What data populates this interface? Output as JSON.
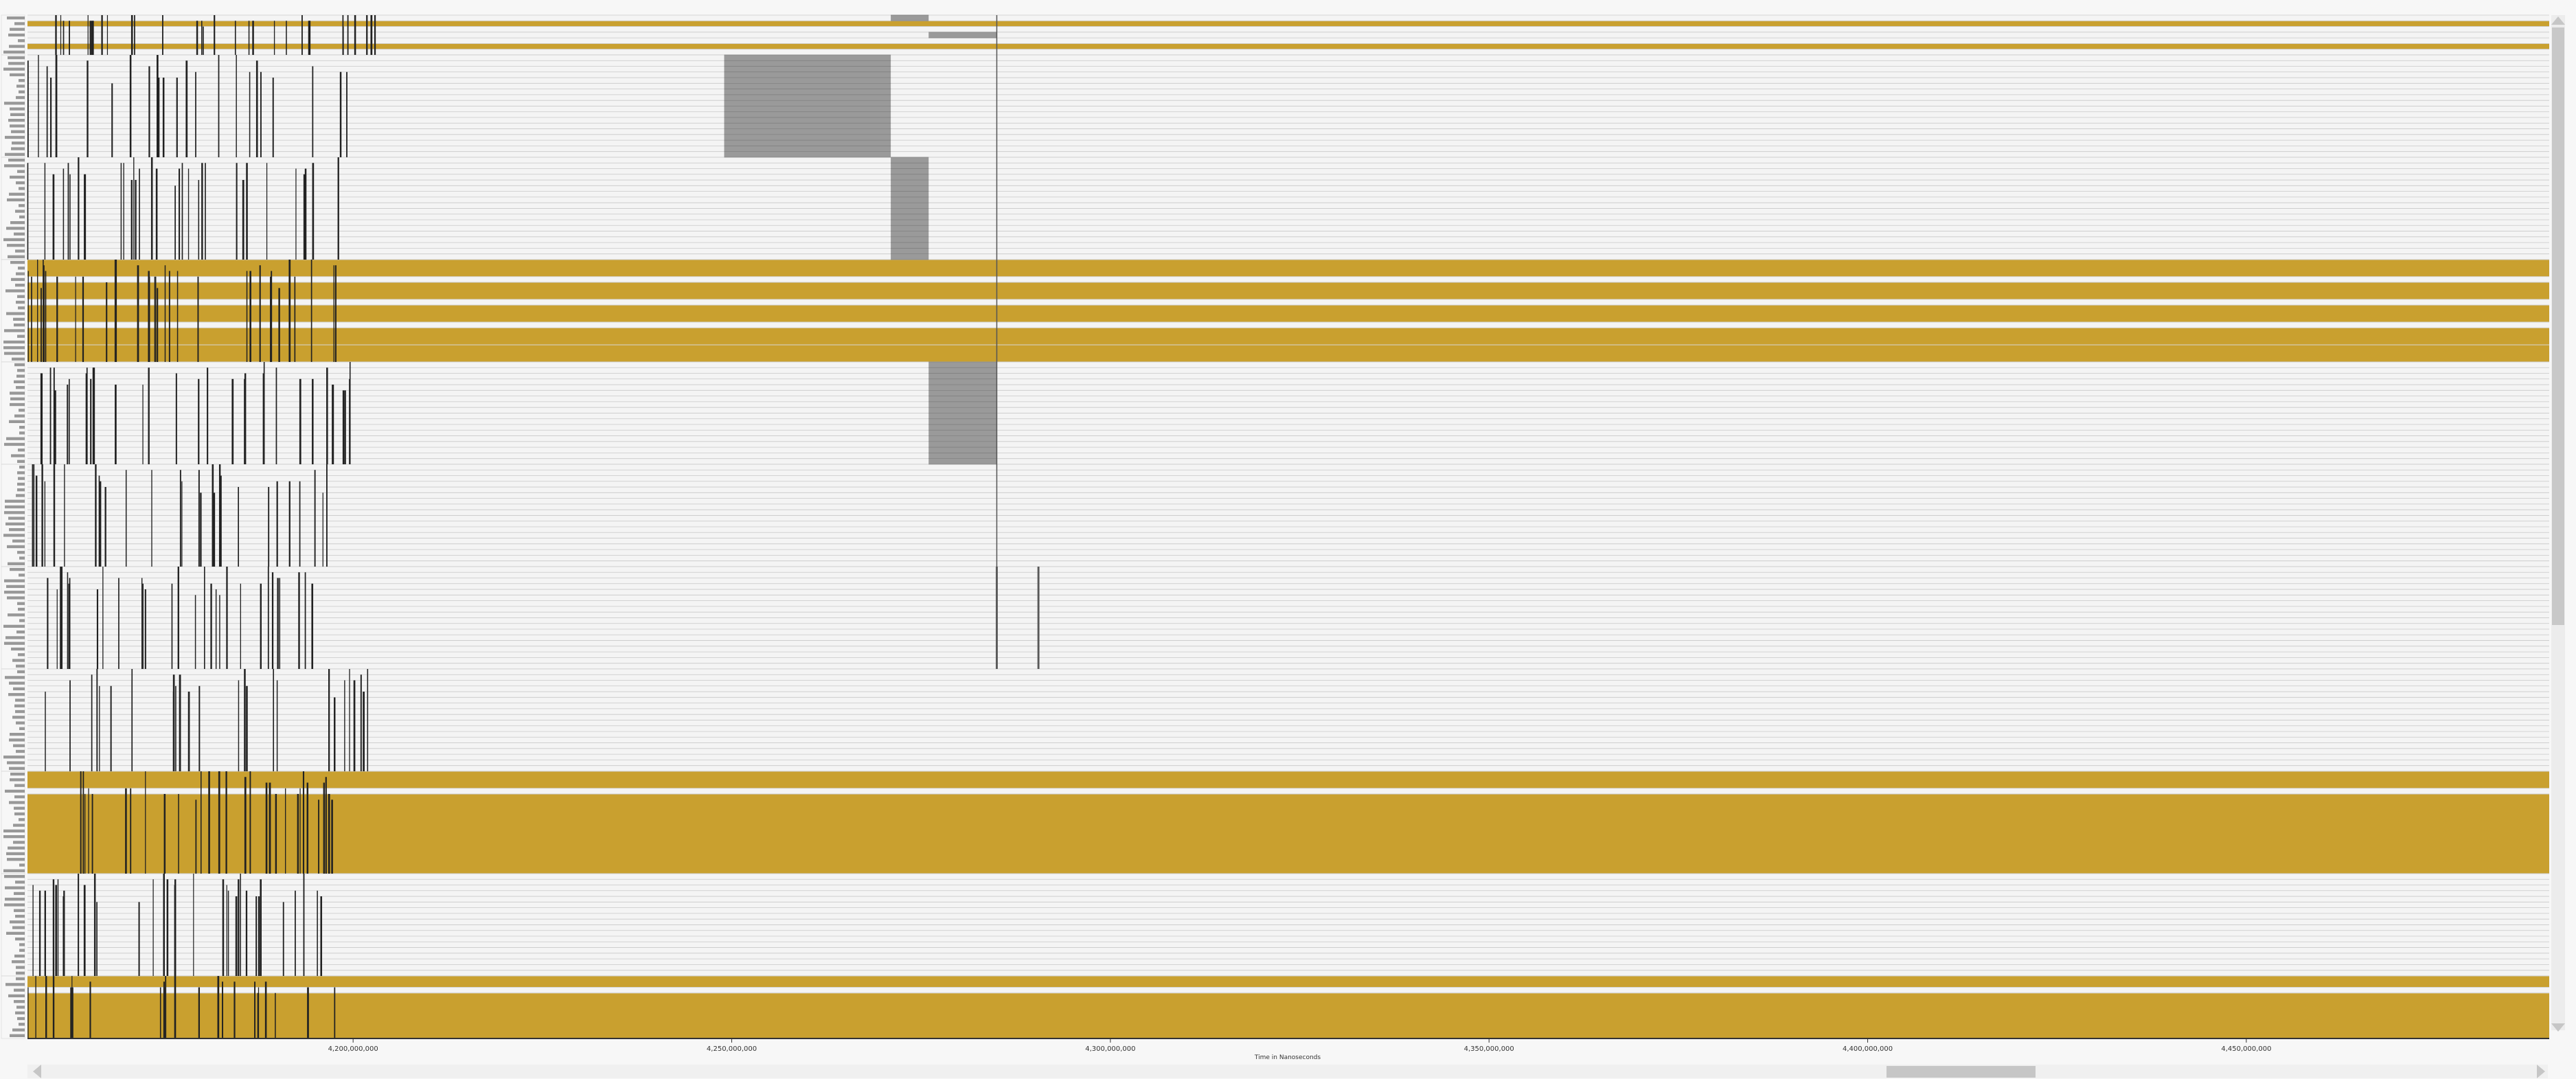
{
  "chart_data": {
    "type": "timeline",
    "xlabel": "Time in Nanoseconds",
    "xlim": [
      4157000000,
      4490000000
    ],
    "x_ticks": [
      {
        "value": 4200000000,
        "label": "4,200,000,000"
      },
      {
        "value": 4250000000,
        "label": "4,250,000,000"
      },
      {
        "value": 4300000000,
        "label": "4,300,000,000"
      },
      {
        "value": 4350000000,
        "label": "4,350,000,000"
      },
      {
        "value": 4400000000,
        "label": "4,400,000,000"
      },
      {
        "value": 4450000000,
        "label": "4,450,000,000"
      }
    ],
    "colors": {
      "busy": "#c9a02f",
      "active": "#9a9a9a",
      "event": "#222222",
      "row_line": "#c8c8c8",
      "row_bg": "#f4f4f4"
    },
    "row_count": 180,
    "legend": "none",
    "grid": "horizontal row lines",
    "groups": [
      {
        "rows": [
          0,
          6
        ],
        "busy": [
          [
            1,
            1
          ],
          [
            5,
            5
          ]
        ],
        "blocks": [
          [
            4271000000,
            4276000000,
            0,
            0
          ],
          [
            4276000000,
            4285000000,
            3,
            3
          ]
        ],
        "burst": [
          4157000000,
          4203000000
        ]
      },
      {
        "rows": [
          7,
          24
        ],
        "burst": [
          4157000000,
          4201000000
        ],
        "blocks": [
          [
            4249000000,
            4271000000,
            7,
            24
          ]
        ]
      },
      {
        "rows": [
          25,
          42
        ],
        "burst": [
          4157000000,
          4199000000
        ],
        "blocks": [
          [
            4271000000,
            4276000000,
            25,
            42
          ]
        ]
      },
      {
        "rows": [
          43,
          60
        ],
        "busy": [
          [
            43,
            45
          ],
          [
            47,
            49
          ],
          [
            51,
            53
          ],
          [
            55,
            57
          ],
          [
            58,
            60
          ]
        ],
        "burst": [
          4157000000,
          4199000000
        ]
      },
      {
        "rows": [
          61,
          78
        ],
        "burst": [
          4157000000,
          4201000000
        ],
        "blocks": [
          [
            4276000000,
            4285000000,
            61,
            78
          ]
        ]
      },
      {
        "rows": [
          79,
          96
        ],
        "burst": [
          4157000000,
          4199000000
        ]
      },
      {
        "rows": [
          97,
          114
        ],
        "burst": [
          4157000000,
          4198000000
        ],
        "events": [
          4285000000,
          4290500000
        ]
      },
      {
        "rows": [
          115,
          132
        ],
        "burst": [
          4157000000,
          4203000000
        ]
      },
      {
        "rows": [
          133,
          150
        ],
        "busy": [
          [
            133,
            135
          ],
          [
            137,
            150
          ]
        ],
        "burst": [
          4157000000,
          4198000000
        ]
      },
      {
        "rows": [
          151,
          168
        ],
        "burst": [
          4157000000,
          4197000000
        ]
      },
      {
        "rows": [
          169,
          179
        ],
        "busy": [
          [
            169,
            170
          ],
          [
            172,
            179
          ]
        ],
        "burst": [
          4157000000,
          4199000000
        ]
      }
    ],
    "markers": [
      {
        "x": 4285000000,
        "row_from": 0,
        "row_to": 114
      },
      {
        "x": 4290500000,
        "row_from": 97,
        "row_to": 114
      }
    ]
  }
}
